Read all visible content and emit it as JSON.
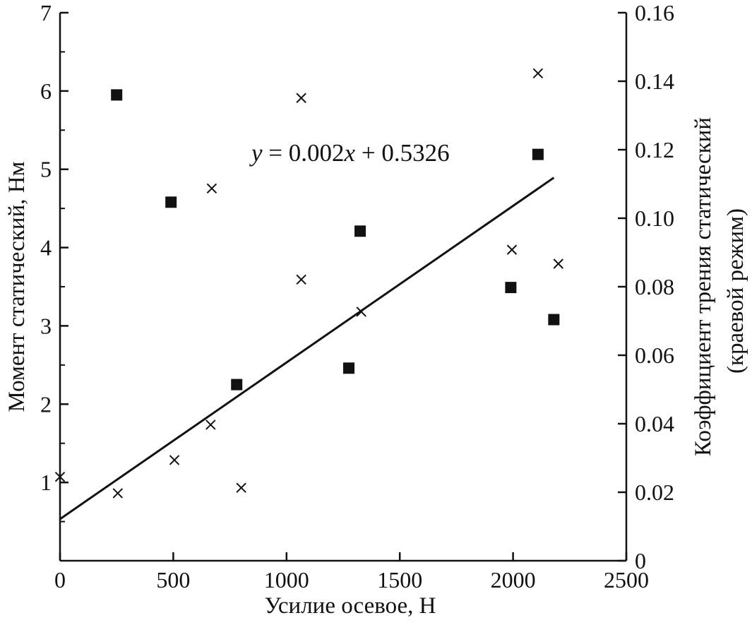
{
  "chart_data": {
    "type": "scatter",
    "xlabel": "Усилие осевое, Н",
    "ylabel": "Момент статический, Нм",
    "y2label_line1": "Коэффициент трения статический",
    "y2label_line2": "(краевой режим)",
    "xlim": [
      0,
      2500
    ],
    "ylim": [
      0,
      7
    ],
    "y2lim": [
      0,
      0.16
    ],
    "x_ticks": [
      "0",
      "500",
      "1000",
      "1500",
      "2000",
      "2500"
    ],
    "y_ticks": [
      "1",
      "2",
      "3",
      "4",
      "5",
      "6",
      "7"
    ],
    "y2_ticks": [
      "0",
      "0.02",
      "0.04",
      "0.06",
      "0.08",
      "0.10",
      "0.12",
      "0.14",
      "0.16"
    ],
    "grid": false,
    "equation": {
      "y": "y",
      "mid": " = 0.002",
      "x": "x",
      "tail": " + 0.5326"
    },
    "trendline": {
      "slope": 0.002,
      "intercept": 0.5326,
      "x_range": [
        0,
        2180
      ],
      "axis": "left"
    },
    "series": [
      {
        "marker": "square",
        "axis": "left",
        "points": [
          [
            250,
            5.95
          ],
          [
            490,
            4.58
          ],
          [
            780,
            2.25
          ],
          [
            1275,
            2.46
          ],
          [
            1325,
            4.21
          ],
          [
            1990,
            3.49
          ],
          [
            2110,
            5.19
          ],
          [
            2180,
            3.08
          ]
        ]
      },
      {
        "marker": "cross",
        "axis": "right",
        "points": [
          [
            0,
            0.0245
          ],
          [
            255,
            0.0197
          ],
          [
            505,
            0.0294
          ],
          [
            665,
            0.0397
          ],
          [
            670,
            0.1087
          ],
          [
            800,
            0.0213
          ],
          [
            1065,
            0.0821
          ],
          [
            1065,
            0.1351
          ],
          [
            1330,
            0.0727
          ],
          [
            1995,
            0.0908
          ],
          [
            2110,
            0.1423
          ],
          [
            2200,
            0.0867
          ]
        ]
      }
    ]
  }
}
